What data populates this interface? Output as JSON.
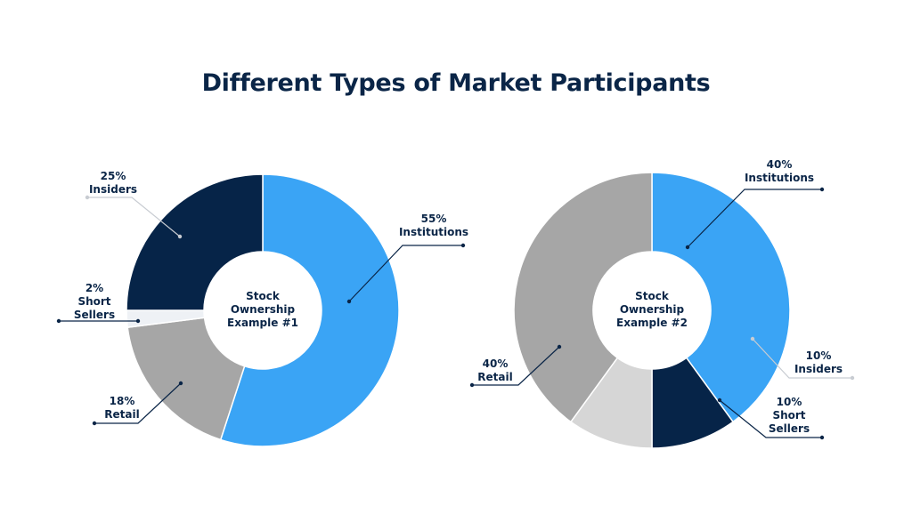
{
  "page": {
    "title": "Different Types of Market Participants"
  },
  "chart_data": [
    {
      "type": "pie",
      "style": "donut",
      "center_label": [
        "Stock",
        "Ownership",
        "Example #1"
      ],
      "slices": [
        {
          "name": "Institutions",
          "value": 55,
          "label": [
            "55%",
            "Institutions"
          ],
          "color": "#3aa4f5"
        },
        {
          "name": "Retail",
          "value": 18,
          "label": [
            "18%",
            "Retail"
          ],
          "color": "#a6a6a6"
        },
        {
          "name": "Short Sellers",
          "value": 2,
          "label": [
            "2%",
            "Short",
            "Sellers"
          ],
          "color": "#eef1f5"
        },
        {
          "name": "Insiders",
          "value": 25,
          "label": [
            "25%",
            "Insiders"
          ],
          "color": "#062448"
        }
      ]
    },
    {
      "type": "pie",
      "style": "donut",
      "center_label": [
        "Stock",
        "Ownership",
        "Example #2"
      ],
      "slices": [
        {
          "name": "Institutions",
          "value": 40,
          "label": [
            "40%",
            "Institutions"
          ],
          "color": "#3aa4f5"
        },
        {
          "name": "Insiders",
          "value": 10,
          "label": [
            "10%",
            "Insiders"
          ],
          "color": "#062448"
        },
        {
          "name": "Short Sellers",
          "value": 10,
          "label": [
            "10%",
            "Short",
            "Sellers"
          ],
          "color": "#d6d6d6"
        },
        {
          "name": "Retail",
          "value": 40,
          "label": [
            "40%",
            "Retail"
          ],
          "color": "#a6a6a6"
        }
      ]
    }
  ]
}
